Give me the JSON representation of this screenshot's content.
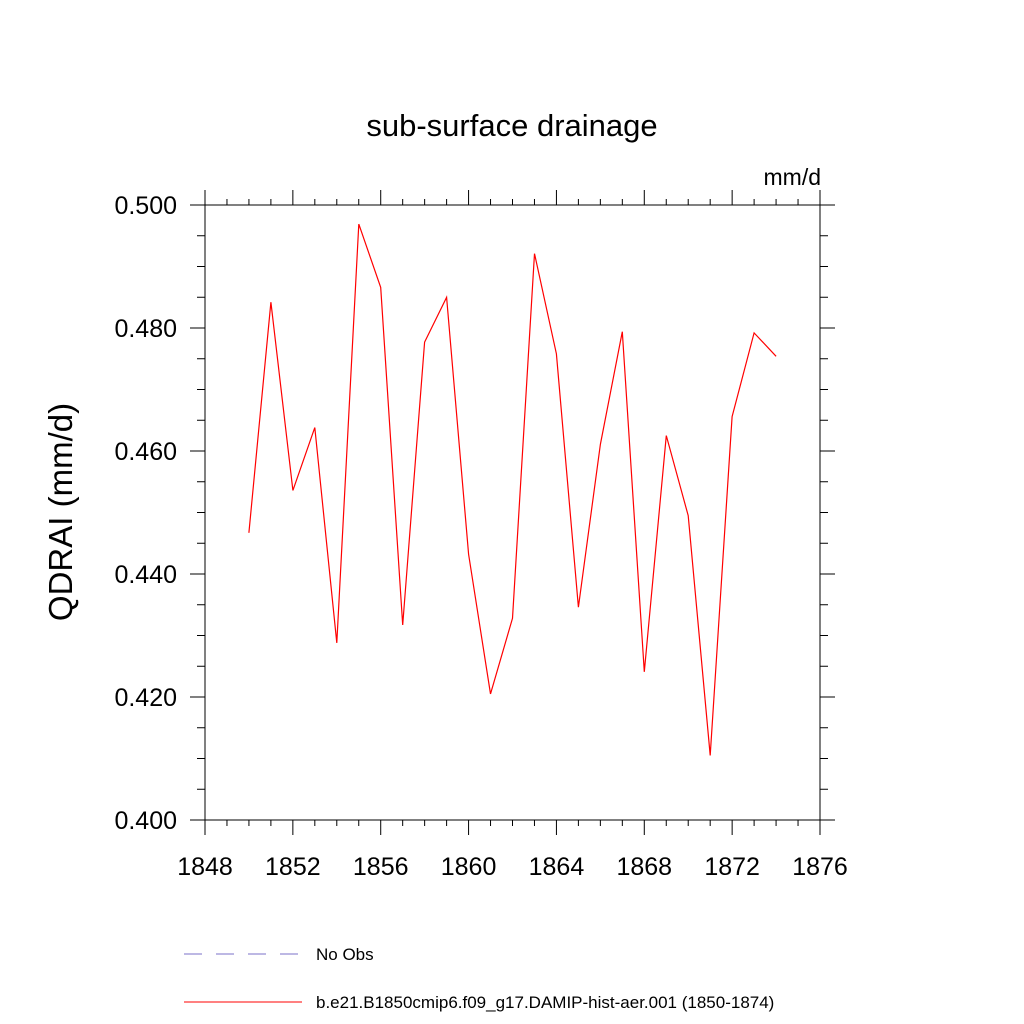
{
  "chart_data": {
    "type": "line",
    "title": "sub-surface drainage",
    "units_label": "mm/d",
    "ylabel": "QDRAI  (mm/d)",
    "xlabel": "",
    "xlim": [
      1848,
      1876
    ],
    "ylim": [
      0.4,
      0.5
    ],
    "x_ticks": [
      1848,
      1852,
      1856,
      1860,
      1864,
      1868,
      1872,
      1876
    ],
    "y_ticks": [
      0.4,
      0.42,
      0.44,
      0.46,
      0.48,
      0.5
    ],
    "y_tick_labels": [
      "0.400",
      "0.420",
      "0.440",
      "0.460",
      "0.480",
      "0.500"
    ],
    "grid": false,
    "legend_position": "bottom",
    "series": [
      {
        "name": "b.e21.B1850cmip6.f09_g17.DAMIP-hist-aer.001 (1850-1874)",
        "color": "#ff0000",
        "style": "solid",
        "x": [
          1850,
          1851,
          1852,
          1853,
          1854,
          1855,
          1856,
          1857,
          1858,
          1859,
          1860,
          1861,
          1862,
          1863,
          1864,
          1865,
          1866,
          1867,
          1868,
          1869,
          1870,
          1871,
          1872,
          1873,
          1874
        ],
        "values": [
          0.4467,
          0.4842,
          0.4536,
          0.4638,
          0.4288,
          0.4969,
          0.4866,
          0.4317,
          0.4777,
          0.485,
          0.4432,
          0.4205,
          0.4328,
          0.4921,
          0.4758,
          0.4346,
          0.4611,
          0.4794,
          0.4241,
          0.4625,
          0.4495,
          0.4105,
          0.4656,
          0.4792,
          0.4754
        ]
      }
    ],
    "legend": [
      {
        "name": "No Obs",
        "color": "#7b72c9",
        "style": "dashed"
      },
      {
        "name": "b.e21.B1850cmip6.f09_g17.DAMIP-hist-aer.001 (1850-1874)",
        "color": "#ff0000",
        "style": "solid"
      }
    ]
  }
}
